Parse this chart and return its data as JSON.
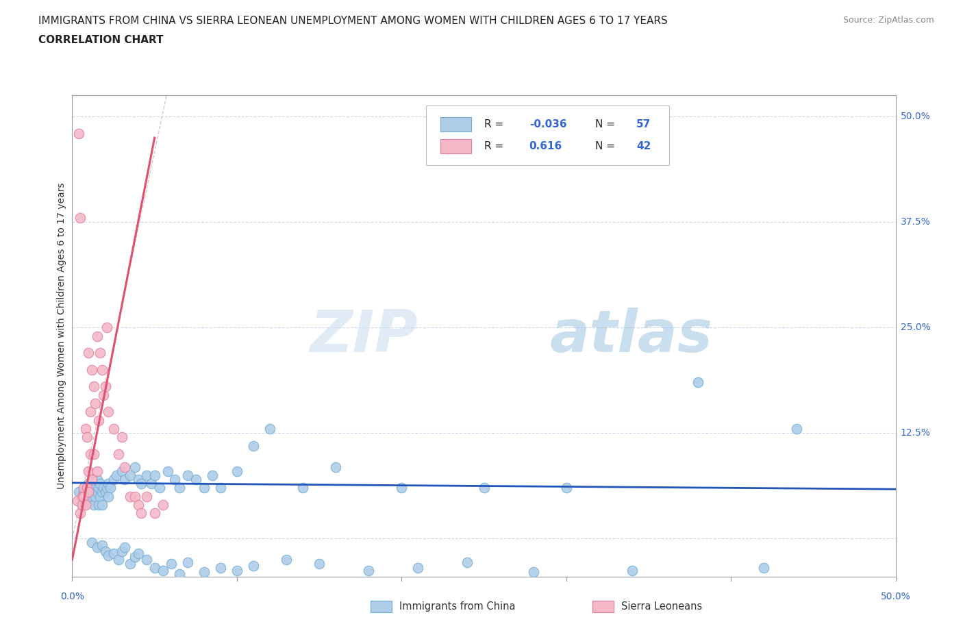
{
  "title_line1": "IMMIGRANTS FROM CHINA VS SIERRA LEONEAN UNEMPLOYMENT AMONG WOMEN WITH CHILDREN AGES 6 TO 17 YEARS",
  "title_line2": "CORRELATION CHART",
  "source_text": "Source: ZipAtlas.com",
  "ylabel": "Unemployment Among Women with Children Ages 6 to 17 years",
  "watermark_zip": "ZIP",
  "watermark_atlas": "atlas",
  "xlim": [
    0.0,
    0.5
  ],
  "ylim": [
    -0.045,
    0.525
  ],
  "ytick_positions": [
    0.0,
    0.125,
    0.25,
    0.375,
    0.5
  ],
  "ytick_labels": [
    "",
    "12.5%",
    "25.0%",
    "37.5%",
    "50.0%"
  ],
  "legend_R1": "-0.036",
  "legend_N1": "57",
  "legend_R2": "0.616",
  "legend_N2": "42",
  "china_color": "#aecde8",
  "china_edge": "#6ea8d0",
  "sierra_color": "#f5b8c8",
  "sierra_edge": "#e07898",
  "trend_china_color": "#2255bb",
  "trend_sierra_color": "#e05070",
  "trend_diagonal_color": "#d0b0c0",
  "grid_color": "#c8d8e8",
  "spine_color": "#999999",
  "background_color": "#ffffff",
  "china_x": [
    0.004,
    0.006,
    0.007,
    0.008,
    0.009,
    0.01,
    0.01,
    0.011,
    0.012,
    0.012,
    0.013,
    0.013,
    0.014,
    0.015,
    0.015,
    0.016,
    0.016,
    0.017,
    0.017,
    0.018,
    0.018,
    0.019,
    0.02,
    0.021,
    0.022,
    0.022,
    0.023,
    0.025,
    0.027,
    0.03,
    0.032,
    0.035,
    0.038,
    0.04,
    0.042,
    0.045,
    0.048,
    0.05,
    0.053,
    0.058,
    0.062,
    0.065,
    0.07,
    0.075,
    0.08,
    0.085,
    0.09,
    0.1,
    0.11,
    0.12,
    0.14,
    0.16,
    0.2,
    0.25,
    0.3,
    0.38,
    0.44
  ],
  "china_y": [
    0.055,
    0.04,
    0.055,
    0.045,
    0.06,
    0.05,
    0.065,
    0.045,
    0.055,
    0.07,
    0.04,
    0.06,
    0.05,
    0.055,
    0.07,
    0.04,
    0.06,
    0.05,
    0.065,
    0.04,
    0.055,
    0.06,
    0.055,
    0.06,
    0.05,
    0.065,
    0.06,
    0.07,
    0.075,
    0.08,
    0.07,
    0.075,
    0.085,
    0.07,
    0.065,
    0.075,
    0.065,
    0.075,
    0.06,
    0.08,
    0.07,
    0.06,
    0.075,
    0.07,
    0.06,
    0.075,
    0.06,
    0.08,
    0.11,
    0.13,
    0.06,
    0.085,
    0.06,
    0.06,
    0.06,
    0.185,
    0.13
  ],
  "china_y_neg": [
    -0.005,
    -0.01,
    -0.008,
    -0.015,
    -0.02,
    -0.018,
    -0.025,
    -0.015,
    -0.01,
    -0.03,
    -0.022,
    -0.018,
    -0.025,
    -0.035,
    -0.038,
    -0.03,
    -0.042,
    -0.028,
    -0.04,
    -0.035,
    -0.038,
    -0.032,
    -0.025,
    -0.03,
    -0.038,
    -0.035,
    -0.028,
    -0.04,
    -0.038,
    -0.035
  ],
  "china_xneg": [
    0.012,
    0.015,
    0.018,
    0.02,
    0.022,
    0.025,
    0.028,
    0.03,
    0.032,
    0.035,
    0.038,
    0.04,
    0.045,
    0.05,
    0.055,
    0.06,
    0.065,
    0.07,
    0.08,
    0.09,
    0.1,
    0.11,
    0.13,
    0.15,
    0.18,
    0.21,
    0.24,
    0.28,
    0.34,
    0.42
  ],
  "sierra_x": [
    0.003,
    0.004,
    0.005,
    0.005,
    0.006,
    0.006,
    0.007,
    0.007,
    0.008,
    0.008,
    0.009,
    0.009,
    0.01,
    0.01,
    0.01,
    0.011,
    0.011,
    0.012,
    0.012,
    0.013,
    0.013,
    0.014,
    0.015,
    0.015,
    0.016,
    0.017,
    0.018,
    0.019,
    0.02,
    0.021,
    0.022,
    0.025,
    0.028,
    0.03,
    0.032,
    0.035,
    0.038,
    0.04,
    0.042,
    0.045,
    0.05,
    0.055
  ],
  "sierra_y": [
    0.045,
    0.48,
    0.03,
    0.38,
    0.04,
    0.05,
    0.05,
    0.06,
    0.04,
    0.13,
    0.06,
    0.12,
    0.055,
    0.08,
    0.22,
    0.1,
    0.15,
    0.07,
    0.2,
    0.18,
    0.1,
    0.16,
    0.08,
    0.24,
    0.14,
    0.22,
    0.2,
    0.17,
    0.18,
    0.25,
    0.15,
    0.13,
    0.1,
    0.12,
    0.085,
    0.05,
    0.05,
    0.04,
    0.03,
    0.05,
    0.03,
    0.04
  ]
}
